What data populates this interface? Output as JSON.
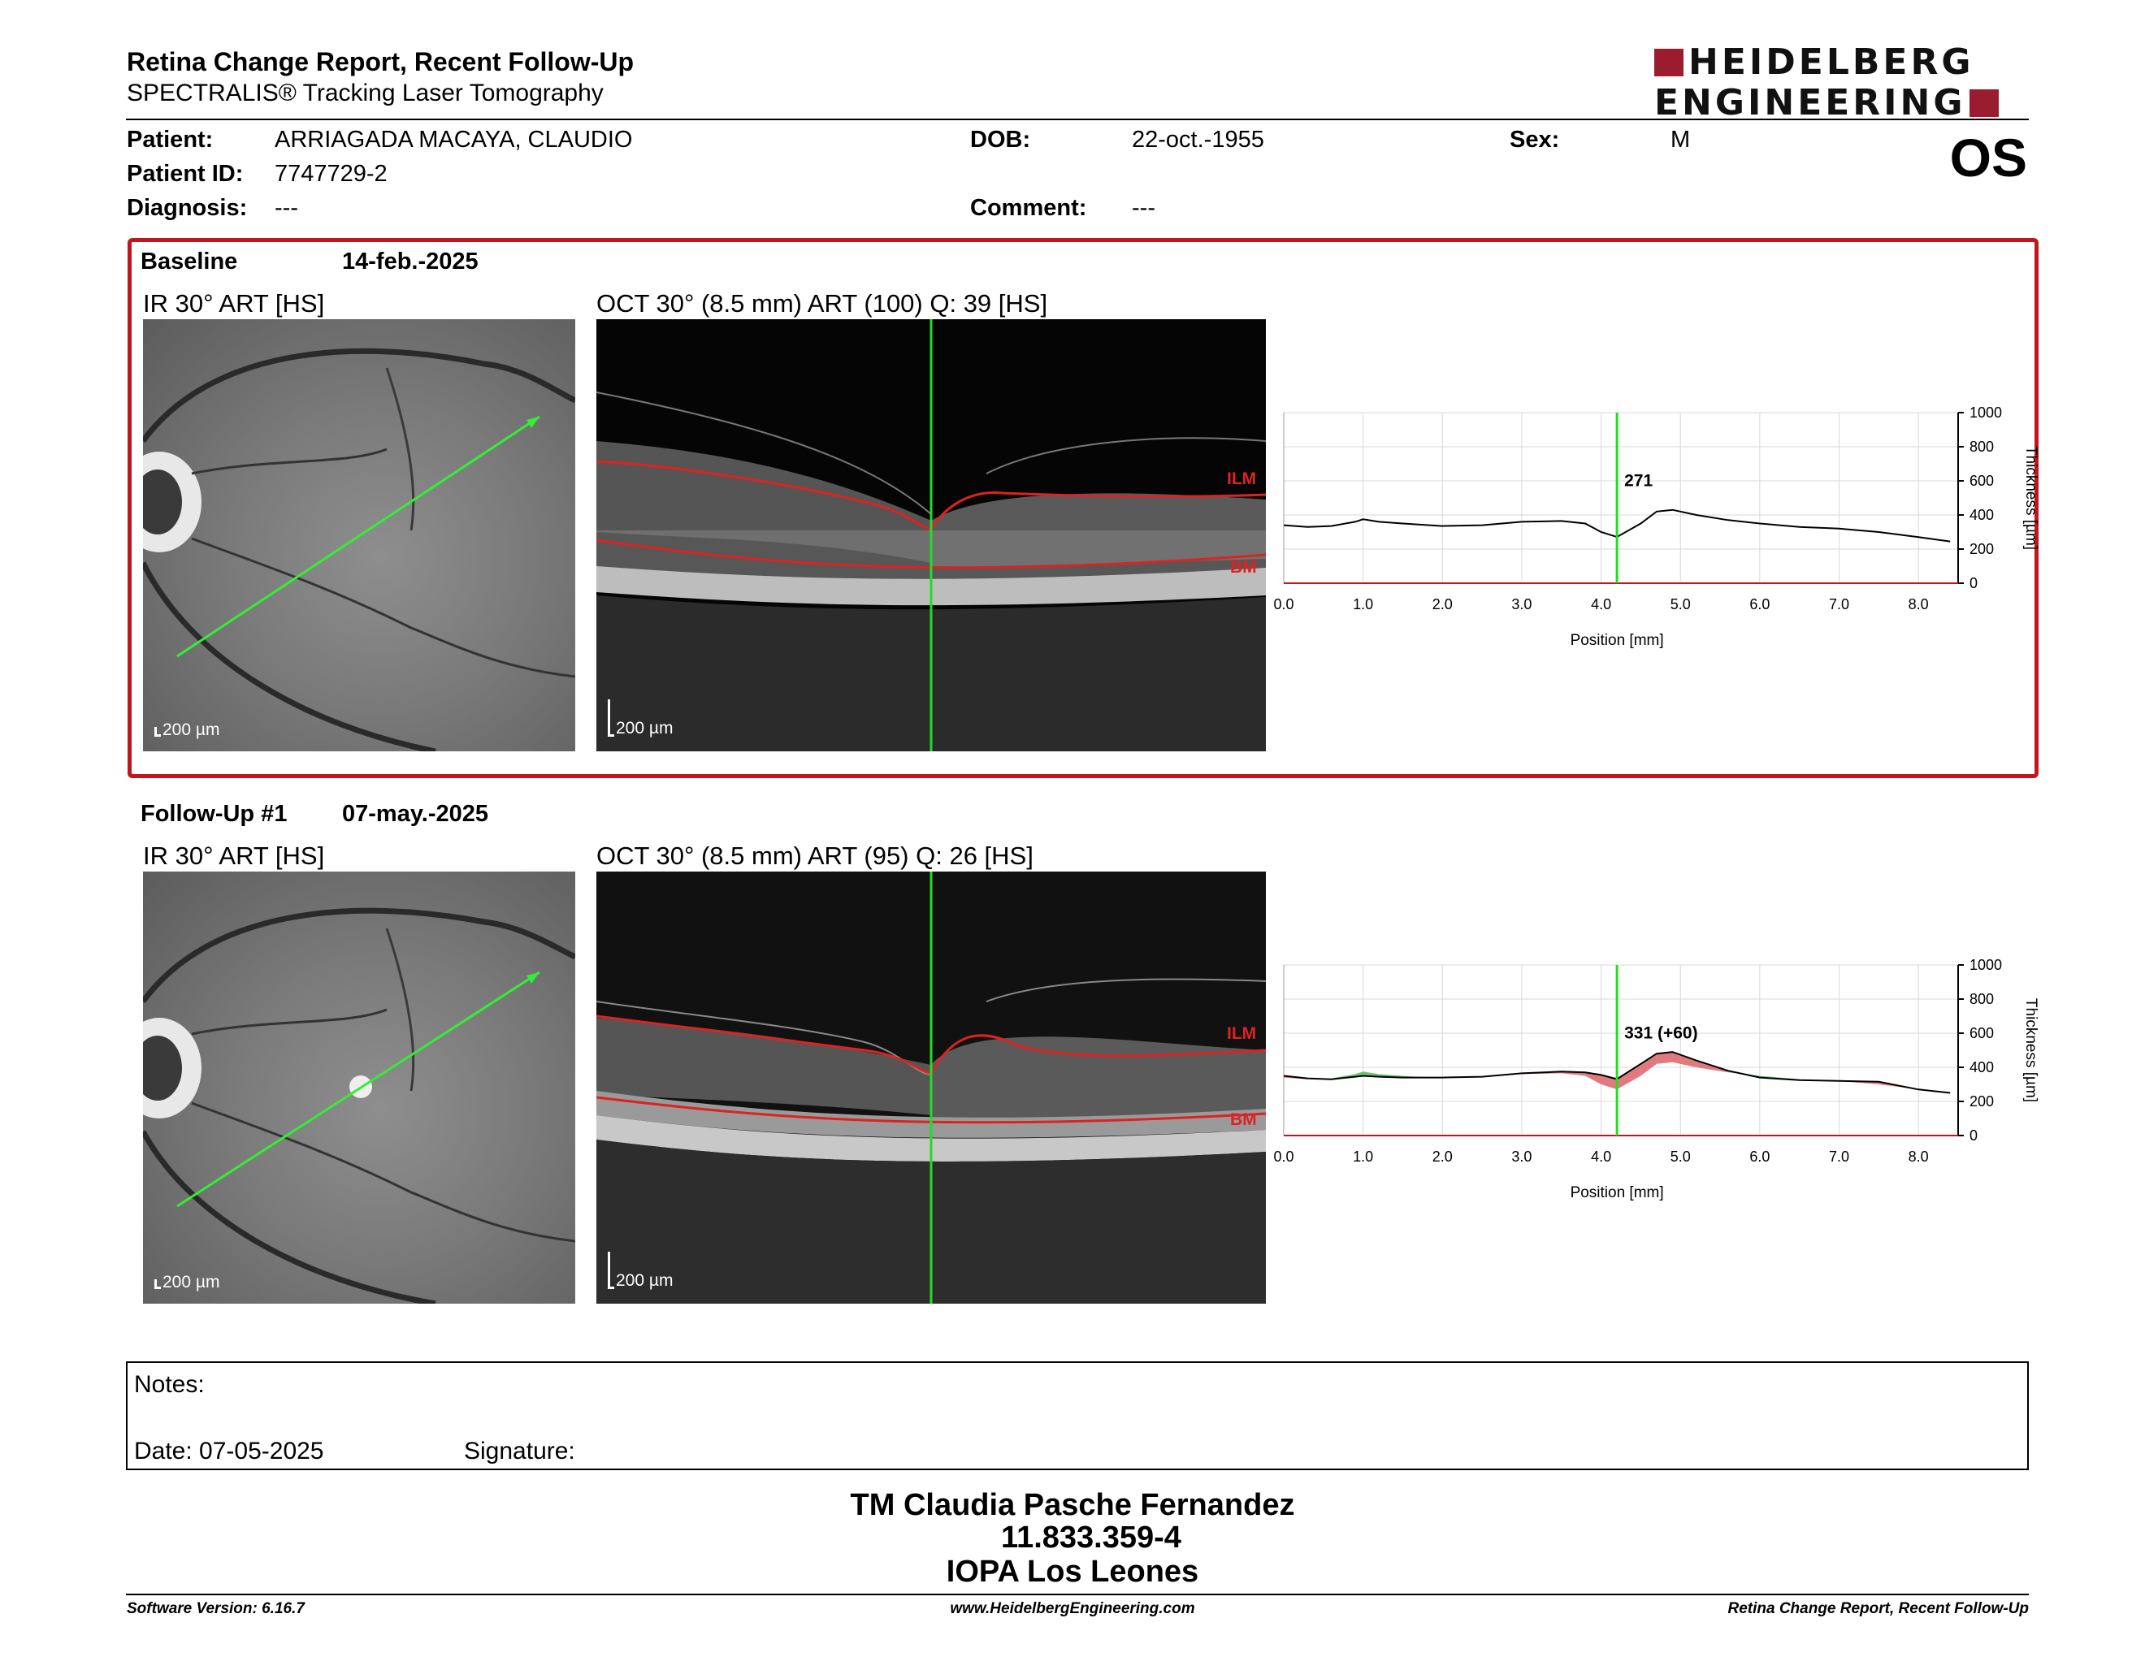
{
  "header": {
    "title": "Retina Change Report, Recent Follow-Up",
    "subtitle": "SPECTRALIS® Tracking Laser Tomography",
    "logo_line1": "HEIDELBERG",
    "logo_line2": "ENGINEERING",
    "eye": "OS"
  },
  "patient": {
    "patient_label": "Patient:",
    "patient_value": "ARRIAGADA MACAYA, CLAUDIO",
    "id_label": "Patient ID:",
    "id_value": "7747729-2",
    "diagnosis_label": "Diagnosis:",
    "diagnosis_value": "---",
    "dob_label": "DOB:",
    "dob_value": "22-oct.-1955",
    "comment_label": "Comment:",
    "comment_value": "---",
    "sex_label": "Sex:",
    "sex_value": "M"
  },
  "baseline": {
    "title": "Baseline",
    "date": "14-feb.-2025",
    "ir_label": "IR 30° ART [HS]",
    "oct_label": "OCT 30° (8.5 mm) ART (100) Q: 39 [HS]",
    "scale": "200 µm",
    "ilm": "ILM",
    "bm": "BM"
  },
  "followup": {
    "title": "Follow-Up #1",
    "date": "07-may.-2025",
    "ir_label": "IR 30° ART [HS]",
    "oct_label": "OCT 30° (8.5 mm) ART (95) Q: 26 [HS]",
    "scale": "200 µm",
    "ilm": "ILM",
    "bm": "BM"
  },
  "chart_data": [
    {
      "type": "line",
      "panel": "baseline",
      "xlabel": "Position [mm]",
      "ylabel": "Thickness [µm]",
      "xlim": [
        0,
        8.5
      ],
      "ylim": [
        0,
        1000
      ],
      "xticks": [
        "0.0",
        "1.0",
        "2.0",
        "3.0",
        "4.0",
        "5.0",
        "6.0",
        "7.0",
        "8.0"
      ],
      "yticks": [
        "0",
        "200",
        "400",
        "600",
        "800",
        "1000"
      ],
      "grid": true,
      "cursor_x": 4.2,
      "annotation": "271",
      "series": [
        {
          "x": [
            0,
            0.3,
            0.6,
            0.9,
            1.0,
            1.2,
            1.5,
            2.0,
            2.5,
            3.0,
            3.5,
            3.8,
            4.0,
            4.2,
            4.5,
            4.7,
            4.9,
            5.2,
            5.6,
            6.0,
            6.5,
            7.0,
            7.5,
            8.0,
            8.4
          ],
          "y": [
            340,
            330,
            335,
            360,
            375,
            360,
            350,
            335,
            340,
            360,
            365,
            350,
            300,
            271,
            350,
            420,
            430,
            400,
            370,
            350,
            330,
            320,
            300,
            270,
            245
          ]
        }
      ]
    },
    {
      "type": "line",
      "panel": "followup",
      "xlabel": "Position [mm]",
      "ylabel": "Thickness [µm]",
      "xlim": [
        0,
        8.5
      ],
      "ylim": [
        0,
        1000
      ],
      "xticks": [
        "0.0",
        "1.0",
        "2.0",
        "3.0",
        "4.0",
        "5.0",
        "6.0",
        "7.0",
        "8.0"
      ],
      "yticks": [
        "0",
        "200",
        "400",
        "600",
        "800",
        "1000"
      ],
      "grid": true,
      "cursor_x": 4.2,
      "annotation": "331 (+60)",
      "series": [
        {
          "x": [
            0,
            0.3,
            0.6,
            0.9,
            1.0,
            1.2,
            1.5,
            2.0,
            2.5,
            3.0,
            3.5,
            3.8,
            4.0,
            4.2,
            4.5,
            4.7,
            4.9,
            5.2,
            5.6,
            6.0,
            6.5,
            7.0,
            7.5,
            8.0,
            8.4
          ],
          "y": [
            350,
            335,
            330,
            345,
            350,
            345,
            340,
            340,
            345,
            365,
            375,
            370,
            355,
            331,
            420,
            480,
            490,
            440,
            380,
            340,
            325,
            320,
            315,
            270,
            250
          ]
        }
      ]
    }
  ],
  "notes": {
    "notes_label": "Notes:",
    "date_label": "Date: 07-05-2025",
    "signature_label": "Signature:"
  },
  "signature": {
    "name": "TM Claudia Pasche Fernandez",
    "id": "11.833.359-4",
    "org": "IOPA Los Leones"
  },
  "footer": {
    "version": "Software Version: 6.16.7",
    "url": "www.HeidelbergEngineering.com",
    "report": "Retina Change Report, Recent Follow-Up"
  },
  "colors": {
    "frame": "#c0161e",
    "cursor": "#22dd22",
    "scan_line": "#33ee33",
    "layer": "#dd2222",
    "thick_increase": "#e07a7e",
    "thick_decrease": "#6cc26c",
    "logo": "#9b1b2f"
  }
}
